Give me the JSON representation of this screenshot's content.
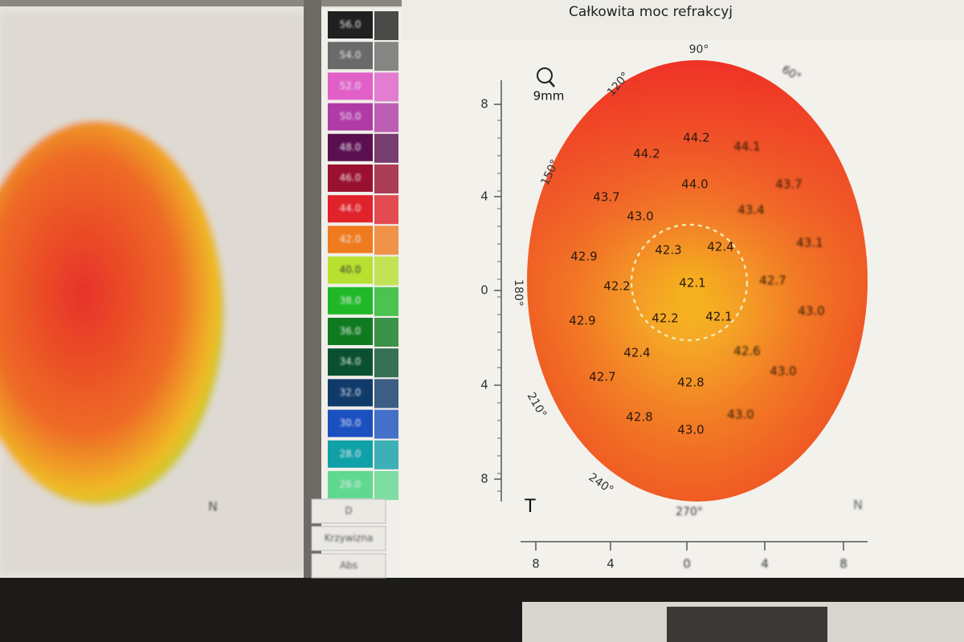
{
  "header": {
    "title": "Całkowita moc refrakcyj"
  },
  "scale": {
    "labels": [
      "56.0",
      "54.0",
      "52.0",
      "50.0",
      "48.0",
      "46.0",
      "44.0",
      "42.0",
      "40.0",
      "38.0",
      "36.0",
      "34.0",
      "32.0",
      "30.0",
      "28.0",
      "26.0"
    ],
    "buttons": [
      "D",
      "Krzywizna",
      "Abs"
    ]
  },
  "map": {
    "zoom": "9mm",
    "side_label": "T",
    "nasal_label": "N",
    "angles": [
      "90°",
      "120°",
      "150°",
      "180°",
      "210°",
      "240°",
      "270°",
      "60°"
    ],
    "y_axis": [
      "8",
      "4",
      "0",
      "4",
      "8"
    ],
    "x_axis": [
      "8",
      "4",
      "0",
      "4",
      "8"
    ],
    "readings": [
      "44.2",
      "44.2",
      "44.1",
      "43.7",
      "44.0",
      "43.7",
      "43.0",
      "43.4",
      "42.9",
      "42.3",
      "42.4",
      "43.1",
      "42.2",
      "42.1",
      "42.7",
      "42.9",
      "42.2",
      "42.1",
      "43.0",
      "42.4",
      "42.6",
      "42.7",
      "42.8",
      "43.0",
      "42.8",
      "43.0",
      "43.0"
    ]
  },
  "left_map": {
    "nasal_label": "N"
  }
}
